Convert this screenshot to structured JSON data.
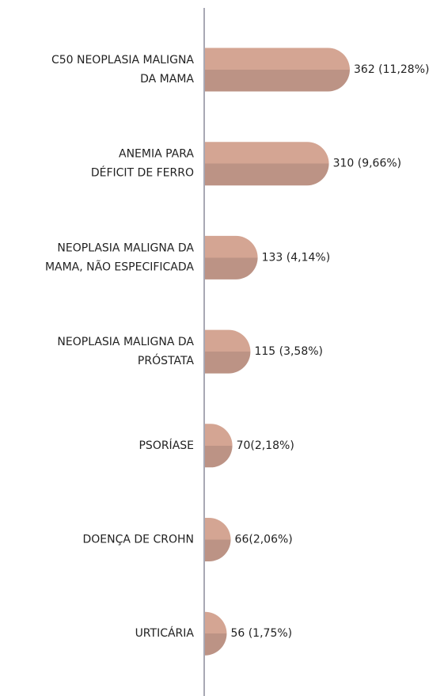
{
  "chart_data": {
    "type": "bar",
    "orientation": "horizontal",
    "categories": [
      [
        "C50 NEOPLASIA MALIGNA",
        "DA MAMA"
      ],
      [
        "ANEMIA PARA",
        "DÉFICIT DE FERRO"
      ],
      [
        "NEOPLASIA MALIGNA DA",
        "MAMA, NÃO ESPECIFICADA"
      ],
      [
        "NEOPLASIA MALIGNA DA",
        "PRÓSTATA"
      ],
      [
        "PSORÍASE"
      ],
      [
        "DOENÇA DE CROHN"
      ],
      [
        "URTICÁRIA"
      ]
    ],
    "values": [
      362,
      310,
      133,
      115,
      70,
      66,
      56
    ],
    "value_labels": [
      "362 (11,28%)",
      "310 (9,66%)",
      "133 (4,14%)",
      "115 (3,58%)",
      "70(2,18%)",
      "66(2,06%)",
      "56 (1,75%)"
    ],
    "color": "#d4a593",
    "color_shade": "#bc9385"
  }
}
